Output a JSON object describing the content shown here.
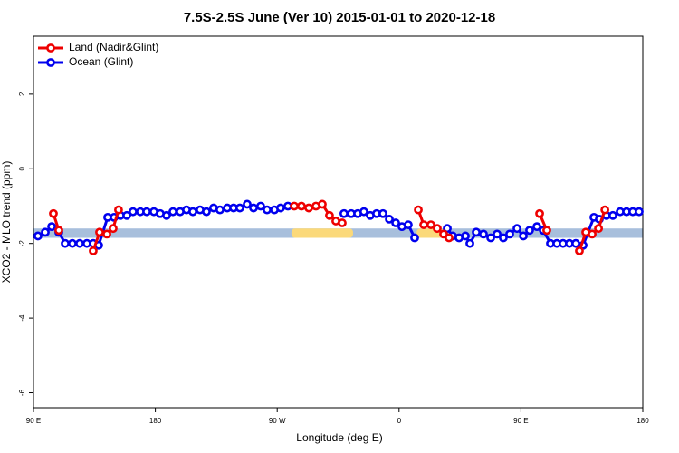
{
  "chart_data": {
    "type": "line",
    "title": "7.5S-2.5S June (Ver 10)   2015-01-01 to 2020-12-18",
    "x_label": "Longitude (deg E)",
    "y_label": "XCO2 - MLO trend (ppm)",
    "xlim": [
      90,
      540
    ],
    "ylim": [
      -6.4,
      3.55
    ],
    "xticks": [
      {
        "value": 90,
        "label": "90 E"
      },
      {
        "value": 180,
        "label": "180"
      },
      {
        "value": 270,
        "label": "90 W"
      },
      {
        "value": 360,
        "label": "0"
      },
      {
        "value": 450,
        "label": "90 E"
      },
      {
        "value": 540,
        "label": "180"
      }
    ],
    "yticks": [
      -6,
      -4,
      -2,
      0,
      2
    ],
    "band": [
      -1.85,
      -1.6
    ],
    "band_color": "#a8bfdc",
    "highlights": [
      [
        280.5,
        326
      ],
      [
        373,
        393
      ]
    ],
    "highlight_color": "#fbd97a",
    "legend": "top-left",
    "series": [
      {
        "name": "Land (Nadir&Glint)",
        "color": "#ee0000",
        "x": [
          104.7,
          108.7,
          null,
          134.1,
          138.8,
          144.2,
          148.8,
          152.8,
          null,
          282.6,
          287.9,
          293.3,
          298.6,
          303.3,
          308.6,
          313.3,
          318,
          null,
          374.2,
          378.2,
          383.5,
          388.2,
          392.9,
          396.9,
          null,
          463.8,
          469.1,
          null,
          493.2,
          497.9,
          502.6,
          507.3,
          512
        ],
        "values": [
          -1.2,
          -1.65,
          null,
          -2.2,
          -1.7,
          -1.75,
          -1.6,
          -1.1,
          null,
          -1.0,
          -1.0,
          -1.05,
          -1.0,
          -0.95,
          -1.25,
          -1.4,
          -1.45,
          null,
          -1.1,
          -1.5,
          -1.5,
          -1.6,
          -1.75,
          -1.85,
          null,
          -1.2,
          -1.65,
          null,
          -2.2,
          -1.7,
          -1.75,
          -1.6,
          -1.1
        ]
      },
      {
        "name": "Ocean (Glint)",
        "color": "#0000ee",
        "x": [
          93.3,
          98.7,
          103.4,
          108.7,
          113.4,
          118.7,
          124.1,
          129.4,
          134.1,
          138.1,
          144.8,
          149.5,
          154.2,
          158.9,
          163.5,
          168.9,
          173.6,
          178.9,
          183.6,
          188.3,
          193,
          198.3,
          203,
          207.7,
          213,
          217.7,
          223,
          227.7,
          233.1,
          237.8,
          242.4,
          247.8,
          252.5,
          257.8,
          262.5,
          267.9,
          272.5,
          277.9,
          null,
          319.3,
          324.7,
          329.4,
          334,
          338.7,
          343.4,
          348.1,
          352.8,
          357.5,
          362.1,
          366.8,
          371.5,
          null,
          395.6,
          399.6,
          404.3,
          409,
          412.3,
          417,
          422.3,
          427.7,
          432.4,
          437,
          441.7,
          447.1,
          451.8,
          456.4,
          461.8,
          466.5,
          471.8,
          476.5,
          481.1,
          485.8,
          490.5,
          495.9,
          503.9,
          507.9,
          513.2,
          517.9,
          523.3,
          528,
          532.6,
          537.3
        ],
        "values": [
          -1.8,
          -1.7,
          -1.55,
          -1.7,
          -2.0,
          -2.0,
          -2.0,
          -2.0,
          -2.0,
          -2.05,
          -1.3,
          -1.3,
          -1.25,
          -1.25,
          -1.15,
          -1.15,
          -1.15,
          -1.15,
          -1.2,
          -1.25,
          -1.15,
          -1.15,
          -1.1,
          -1.15,
          -1.1,
          -1.15,
          -1.05,
          -1.1,
          -1.05,
          -1.05,
          -1.05,
          -0.95,
          -1.05,
          -1.0,
          -1.1,
          -1.1,
          -1.05,
          -1.0,
          null,
          -1.2,
          -1.2,
          -1.2,
          -1.15,
          -1.25,
          -1.2,
          -1.2,
          -1.35,
          -1.45,
          -1.55,
          -1.5,
          -1.85,
          null,
          -1.6,
          -1.8,
          -1.85,
          -1.8,
          -2.0,
          -1.7,
          -1.75,
          -1.85,
          -1.75,
          -1.85,
          -1.75,
          -1.6,
          -1.8,
          -1.65,
          -1.55,
          -1.65,
          -2.0,
          -2.0,
          -2.0,
          -2.0,
          -2.0,
          -2.05,
          -1.3,
          -1.35,
          -1.25,
          -1.25,
          -1.15,
          -1.15,
          -1.15,
          -1.15
        ]
      }
    ]
  }
}
